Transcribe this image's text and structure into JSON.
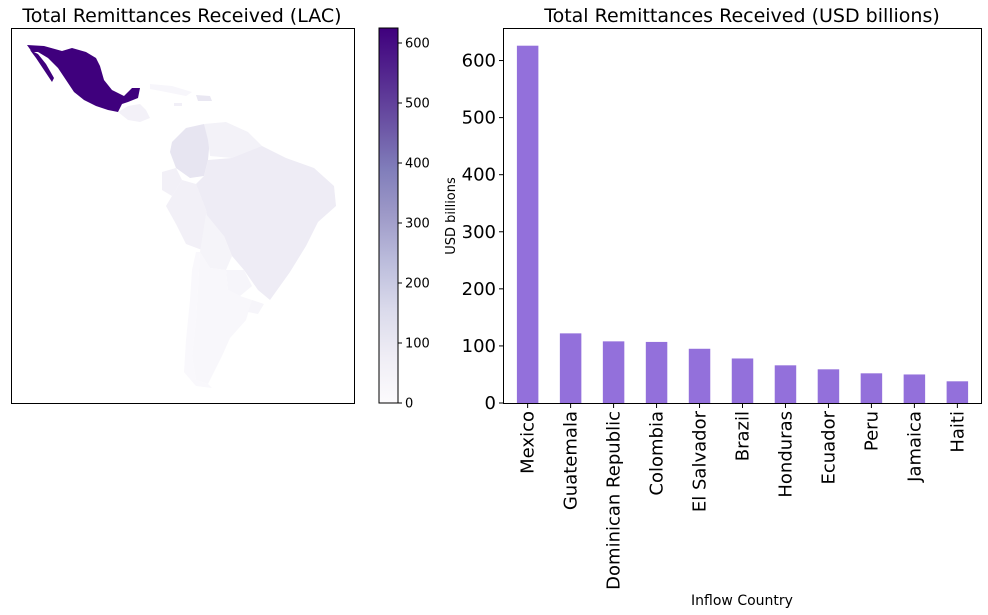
{
  "chart_data": [
    {
      "type": "map",
      "title": "Total Remittances Received (LAC)",
      "colorbar": {
        "label": "USD billions",
        "min": 0,
        "max": 625,
        "ticks": [
          0,
          100,
          200,
          300,
          400,
          500,
          600
        ],
        "colormap": [
          "#fcfbfd",
          "#efedf5",
          "#dadaeb",
          "#bcbddc",
          "#9e9ac8",
          "#807dba",
          "#6a51a3",
          "#54278f",
          "#3f007d"
        ]
      },
      "regions": [
        {
          "name": "Mexico",
          "value": 626
        },
        {
          "name": "Guatemala",
          "value": 122
        },
        {
          "name": "Dominican Republic",
          "value": 108
        },
        {
          "name": "Colombia",
          "value": 107
        },
        {
          "name": "El Salvador",
          "value": 95
        },
        {
          "name": "Brazil",
          "value": 78
        },
        {
          "name": "Honduras",
          "value": 66
        },
        {
          "name": "Ecuador",
          "value": 59
        },
        {
          "name": "Peru",
          "value": 52
        },
        {
          "name": "Jamaica",
          "value": 50
        },
        {
          "name": "Haiti",
          "value": 38
        }
      ]
    },
    {
      "type": "bar",
      "title": "Total Remittances Received (USD billions)",
      "xlabel": "Inflow Country",
      "ylabel": "",
      "categories": [
        "Mexico",
        "Guatemala",
        "Dominican Republic",
        "Colombia",
        "El Salvador",
        "Brazil",
        "Honduras",
        "Ecuador",
        "Peru",
        "Jamaica",
        "Haiti"
      ],
      "values": [
        626,
        122,
        108,
        107,
        95,
        78,
        66,
        59,
        52,
        50,
        38
      ],
      "ylim": [
        0,
        657
      ],
      "yticks": [
        0,
        100,
        200,
        300,
        400,
        500,
        600
      ],
      "bar_color": "#9370db",
      "grid": false
    }
  ]
}
